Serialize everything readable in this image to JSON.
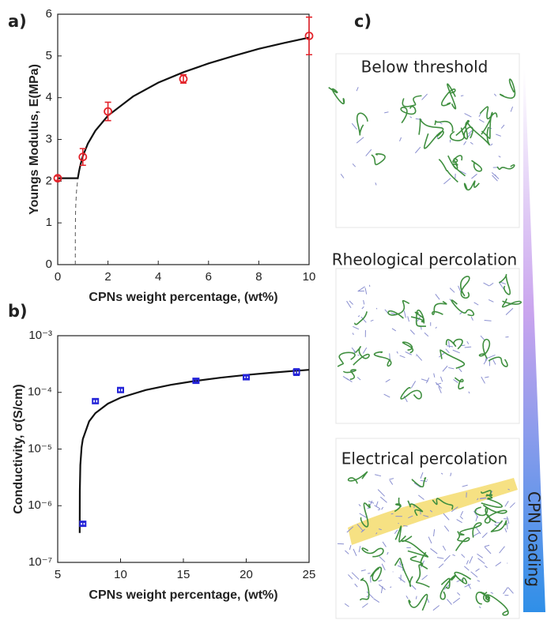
{
  "chart_data": [
    {
      "type": "scatter",
      "label": "a)",
      "x_label": "CPNs weight percentage, (wt%)",
      "y_label": "Youngs Modulus, E(MPa)",
      "xlim": [
        0,
        10
      ],
      "ylim": [
        0,
        6
      ],
      "xticks": [
        0,
        2,
        4,
        6,
        8,
        10
      ],
      "yticks": [
        0,
        1,
        2,
        3,
        4,
        5,
        6
      ],
      "x": [
        0,
        1,
        2,
        5,
        10
      ],
      "values": [
        2.07,
        2.58,
        3.67,
        4.45,
        5.48
      ],
      "errors": [
        0.05,
        0.2,
        0.22,
        0.1,
        0.45
      ],
      "color": "#e3242b",
      "marker": "circle",
      "fit_lines": [
        {
          "color": "#111111",
          "dash": false,
          "x": [
            0,
            0.8,
            0.85,
            0.9,
            1,
            1.2,
            1.5,
            2,
            3,
            4,
            5,
            6,
            7,
            8,
            9,
            10
          ],
          "values": [
            2.07,
            2.07,
            2.24,
            2.38,
            2.6,
            2.9,
            3.21,
            3.57,
            4.03,
            4.36,
            4.61,
            4.82,
            5.0,
            5.17,
            5.31,
            5.44
          ]
        },
        {
          "color": "#555555",
          "dash": true,
          "x": [
            0.7,
            0.701,
            0.71,
            0.72,
            0.75,
            0.8
          ],
          "values": [
            0,
            0.76,
            1.25,
            1.45,
            1.77,
            2.06
          ]
        }
      ]
    },
    {
      "type": "scatter",
      "label": "b)",
      "x_label": "CPNs weight percentage, (wt%)",
      "y_label": "Conductivity, σ(S/cm)",
      "xlim": [
        5,
        25
      ],
      "ylim": [
        1e-07,
        0.001
      ],
      "yscale": "log",
      "xticks": [
        5,
        10,
        15,
        20,
        25
      ],
      "yticks": [
        {
          "value": 1e-07,
          "label": "10⁻⁷"
        },
        {
          "value": 1e-06,
          "label": "10⁻⁶"
        },
        {
          "value": 1e-05,
          "label": "10⁻⁵"
        },
        {
          "value": 0.0001,
          "label": "10⁻⁴"
        },
        {
          "value": 0.001,
          "label": "10⁻³"
        }
      ],
      "x": [
        7,
        8,
        10,
        16,
        20,
        24
      ],
      "values": [
        4.8e-07,
        7e-05,
        0.00011,
        0.00016,
        0.000185,
        0.00023
      ],
      "errors": [
        3e-08,
        5e-06,
        8e-06,
        8e-06,
        1e-05,
        3e-05
      ],
      "color": "#2424d8",
      "marker": "square",
      "fit_lines": [
        {
          "color": "#111111",
          "dash": false,
          "x": [
            6.7508,
            6.751,
            6.76,
            6.8,
            6.9,
            7,
            7.5,
            8,
            9,
            10,
            12,
            14,
            16,
            18,
            20,
            22,
            24,
            25
          ],
          "values": [
            3.3e-07,
            4e-07,
            1.82e-06,
            5.21e-06,
            1.07e-05,
            1.5e-05,
            3.08e-05,
            4.31e-05,
            6.33e-05,
            8.06e-05,
            0.00011,
            0.000136,
            0.00016,
            0.000182,
            0.000203,
            0.000222,
            0.000241,
            0.00025
          ]
        }
      ]
    }
  ],
  "panel_c": {
    "label": "c)",
    "captions": [
      "Below threshold",
      "Rheological percolation",
      "Electrical percolation"
    ],
    "arrow_label": "CPN loading"
  }
}
